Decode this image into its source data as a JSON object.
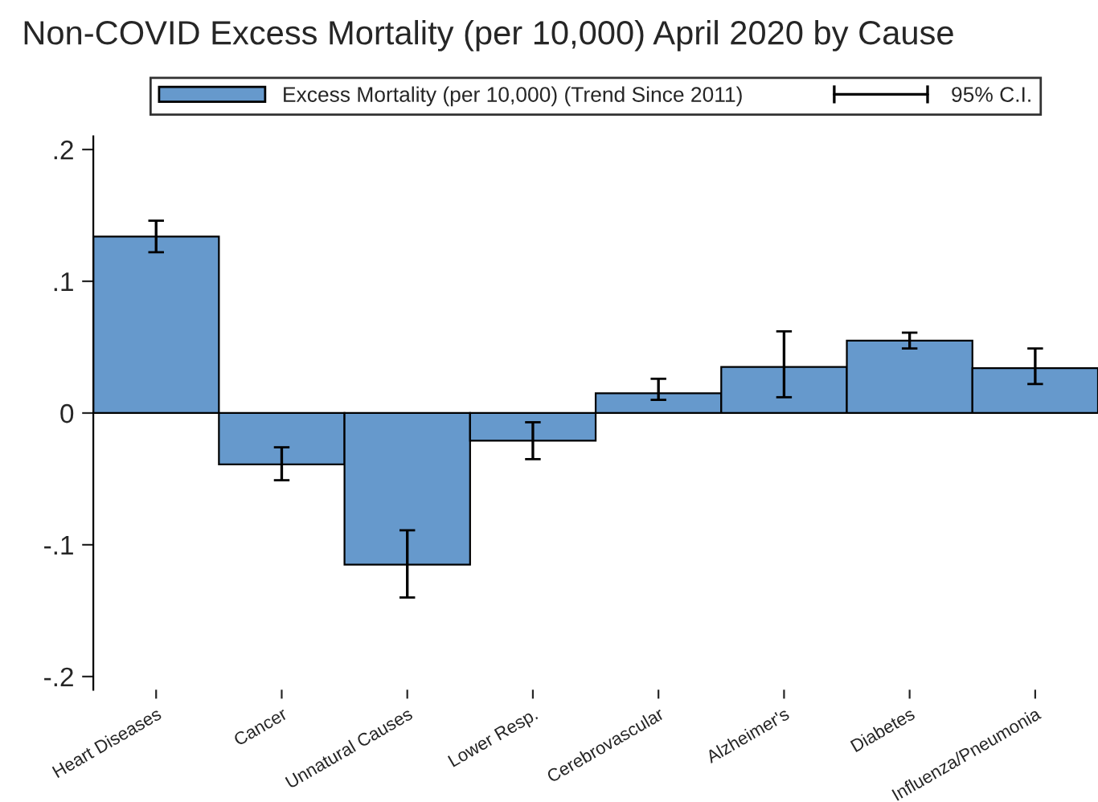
{
  "chart_data": {
    "type": "bar",
    "title": "Non-COVID Excess Mortality (per 10,000) April 2020 by Cause",
    "categories": [
      "Heart Diseases",
      "Cancer",
      "Unnatural Causes",
      "Lower Resp.",
      "Cerebrovascular",
      "Alzheimer's",
      "Diabetes",
      "Influenza/Pneumonia"
    ],
    "series": [
      {
        "name": "Excess Mortality (per 10,000) (Trend Since 2011)",
        "color": "#6699cc",
        "values": [
          0.134,
          -0.039,
          -0.115,
          -0.021,
          0.015,
          0.035,
          0.055,
          0.034
        ],
        "errors": [
          [
            0.122,
            0.146
          ],
          [
            -0.051,
            -0.026
          ],
          [
            -0.14,
            -0.089
          ],
          [
            -0.035,
            -0.007
          ],
          [
            0.01,
            0.026
          ],
          [
            0.012,
            0.062
          ],
          [
            0.049,
            0.061
          ],
          [
            0.022,
            0.049
          ]
        ]
      }
    ],
    "annotations": [
      "95% C.I."
    ],
    "ylim": [
      -0.21,
      0.21
    ],
    "yticks": [
      {
        "value": -0.2,
        "label": "-.2"
      },
      {
        "value": -0.1,
        "label": "-.1"
      },
      {
        "value": 0,
        "label": "0"
      },
      {
        "value": 0.1,
        "label": ".1"
      },
      {
        "value": 0.2,
        "label": ".2"
      }
    ],
    "grid": false,
    "legend": "top"
  }
}
